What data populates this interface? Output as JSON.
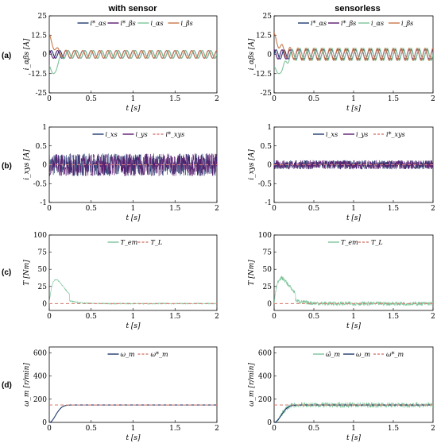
{
  "figure": {
    "column_titles": [
      "with sensor",
      "sensorless"
    ],
    "row_labels": [
      "(a)",
      "(b)",
      "(c)",
      "(d)"
    ]
  },
  "colors": {
    "dark_blue": "#1f3a6e",
    "purple": "#5b1a6e",
    "green": "#7cc49a",
    "orange": "#c8784a",
    "red_dashed": "#d9847a"
  },
  "chart_data": [
    {
      "id": "a-with-sensor",
      "type": "line",
      "row": "(a)",
      "column": "with sensor",
      "xlabel": "t [s]",
      "ylabel": "i_αβs [A]",
      "xlim": [
        0,
        2
      ],
      "ylim": [
        -25,
        25
      ],
      "xticks": [
        "0",
        "0.5",
        "1",
        "1.5",
        "2"
      ],
      "yticks": [
        "25",
        "12.5",
        "0",
        "-12.5",
        "-25"
      ],
      "series": [
        {
          "name": "i*_αs",
          "color": "#1f3a6e",
          "amplitude": 2.5,
          "frequency_hz": 10,
          "phase": "sin"
        },
        {
          "name": "i*_βs",
          "color": "#5b1a6e",
          "amplitude": 2.5,
          "frequency_hz": 10,
          "phase": "cos"
        },
        {
          "name": "i_αs",
          "color": "#7cc49a",
          "amplitude": 2.5,
          "frequency_hz": 10,
          "phase": "sin",
          "transient": {
            "min": -12.5,
            "min_at": 0.05,
            "settle": 0.15
          }
        },
        {
          "name": "i_βs",
          "color": "#c8784a",
          "amplitude": 2.5,
          "frequency_hz": 10,
          "phase": "cos",
          "transient": {
            "start": 14,
            "settle": 0.15
          }
        }
      ]
    },
    {
      "id": "a-sensorless",
      "type": "line",
      "row": "(a)",
      "column": "sensorless",
      "xlabel": "t [s]",
      "ylabel": "i_αβs [A]",
      "xlim": [
        0,
        2
      ],
      "ylim": [
        -25,
        25
      ],
      "xticks": [
        "0",
        "0.5",
        "1",
        "1.5",
        "2"
      ],
      "yticks": [
        "25",
        "12.5",
        "0",
        "-12.5",
        "-25"
      ],
      "series": [
        {
          "name": "i*_αs",
          "color": "#1f3a6e",
          "amplitude": 3,
          "frequency_hz": 10,
          "phase": "sin"
        },
        {
          "name": "i*_βs",
          "color": "#5b1a6e",
          "amplitude": 3,
          "frequency_hz": 10,
          "phase": "cos"
        },
        {
          "name": "i_αs",
          "color": "#7cc49a",
          "amplitude": 4,
          "frequency_hz": 10,
          "phase": "sin",
          "transient": {
            "min": -12.5,
            "min_at": 0.06,
            "settle": 0.2
          }
        },
        {
          "name": "i_βs",
          "color": "#c8784a",
          "amplitude": 4,
          "frequency_hz": 10,
          "phase": "cos",
          "transient": {
            "start": 14,
            "settle": 0.2
          }
        }
      ]
    },
    {
      "id": "b-with-sensor",
      "type": "line",
      "row": "(b)",
      "column": "with sensor",
      "xlabel": "t [s]",
      "ylabel": "i_xys [A]",
      "xlim": [
        0,
        2
      ],
      "ylim": [
        -1,
        1
      ],
      "xticks": [
        "0",
        "0.5",
        "1",
        "1.5",
        "2"
      ],
      "yticks": [
        "1",
        "0.5",
        "0",
        "-0.5",
        "-1"
      ],
      "series": [
        {
          "name": "i_xs",
          "color": "#1f3a6e",
          "noise_band": 0.3
        },
        {
          "name": "i_ys",
          "color": "#5b1a6e",
          "noise_band": 0.3
        },
        {
          "name": "i*_xys",
          "color": "#d9847a",
          "dashed": true,
          "value": 0
        }
      ]
    },
    {
      "id": "b-sensorless",
      "type": "line",
      "row": "(b)",
      "column": "sensorless",
      "xlabel": "t [s]",
      "ylabel": "i_xys [A]",
      "xlim": [
        0,
        2
      ],
      "ylim": [
        -1,
        1
      ],
      "xticks": [
        "0",
        "0.5",
        "1",
        "1.5",
        "2"
      ],
      "yticks": [
        "1",
        "0.5",
        "0",
        "-0.5",
        "-1"
      ],
      "series": [
        {
          "name": "i_xs",
          "color": "#1f3a6e",
          "noise_band": 0.12
        },
        {
          "name": "i_ys",
          "color": "#5b1a6e",
          "noise_band": 0.12
        },
        {
          "name": "i*_xys",
          "color": "#d9847a",
          "dashed": true,
          "value": 0
        }
      ]
    },
    {
      "id": "c-with-sensor",
      "type": "line",
      "row": "(c)",
      "column": "with sensor",
      "xlabel": "t [s]",
      "ylabel": "T [Nm]",
      "xlim": [
        0,
        2
      ],
      "ylim": [
        -10,
        100
      ],
      "xticks": [
        "0",
        "0.5",
        "1",
        "1.5",
        "2"
      ],
      "yticks": [
        "100",
        "75",
        "50",
        "25",
        "0"
      ],
      "series": [
        {
          "name": "T_em",
          "color": "#7cc49a",
          "peak": 35,
          "peak_at": 0.08,
          "noise": 0.8
        },
        {
          "name": "T_L",
          "color": "#d9847a",
          "dashed": true,
          "value": 0
        }
      ]
    },
    {
      "id": "c-sensorless",
      "type": "line",
      "row": "(c)",
      "column": "sensorless",
      "xlabel": "t [s]",
      "ylabel": "T [Nm]",
      "xlim": [
        0,
        2
      ],
      "ylim": [
        -10,
        100
      ],
      "xticks": [
        "0",
        "0.5",
        "1",
        "1.5",
        "2"
      ],
      "yticks": [
        "100",
        "75",
        "50",
        "25",
        "0"
      ],
      "series": [
        {
          "name": "T_em",
          "color": "#7cc49a",
          "peak": 37,
          "peak_at": 0.09,
          "noise": 3
        },
        {
          "name": "T_L",
          "color": "#d9847a",
          "dashed": true,
          "value": 0
        }
      ]
    },
    {
      "id": "d-with-sensor",
      "type": "line",
      "row": "(d)",
      "column": "with sensor",
      "xlabel": "t [s]",
      "ylabel": "ω_m [r/min]",
      "xlim": [
        0,
        2
      ],
      "ylim": [
        0,
        650
      ],
      "xticks": [
        "0",
        "0.5",
        "1",
        "1.5",
        "2"
      ],
      "yticks": [
        "600",
        "400",
        "200",
        "0"
      ],
      "series": [
        {
          "name": "ω_m",
          "color": "#1f3a6e",
          "final": 150,
          "rise_time": 0.3
        },
        {
          "name": "ω*_m",
          "color": "#d9847a",
          "dashed": true,
          "value": 150
        }
      ]
    },
    {
      "id": "d-sensorless",
      "type": "line",
      "row": "(d)",
      "column": "sensorless",
      "xlabel": "t [s]",
      "ylabel": "ω_m [r/min]",
      "xlim": [
        0,
        2
      ],
      "ylim": [
        0,
        650
      ],
      "xticks": [
        "0",
        "0.5",
        "1",
        "1.5",
        "2"
      ],
      "yticks": [
        "600",
        "400",
        "200",
        "0"
      ],
      "series": [
        {
          "name": "ω̂_m",
          "color": "#7cc49a",
          "final": 150,
          "rise_time": 0.35,
          "noise": 22
        },
        {
          "name": "ω_m",
          "color": "#1f3a6e",
          "final": 150,
          "rise_time": 0.35
        },
        {
          "name": "ω*_m",
          "color": "#d9847a",
          "dashed": true,
          "value": 150
        }
      ]
    }
  ]
}
